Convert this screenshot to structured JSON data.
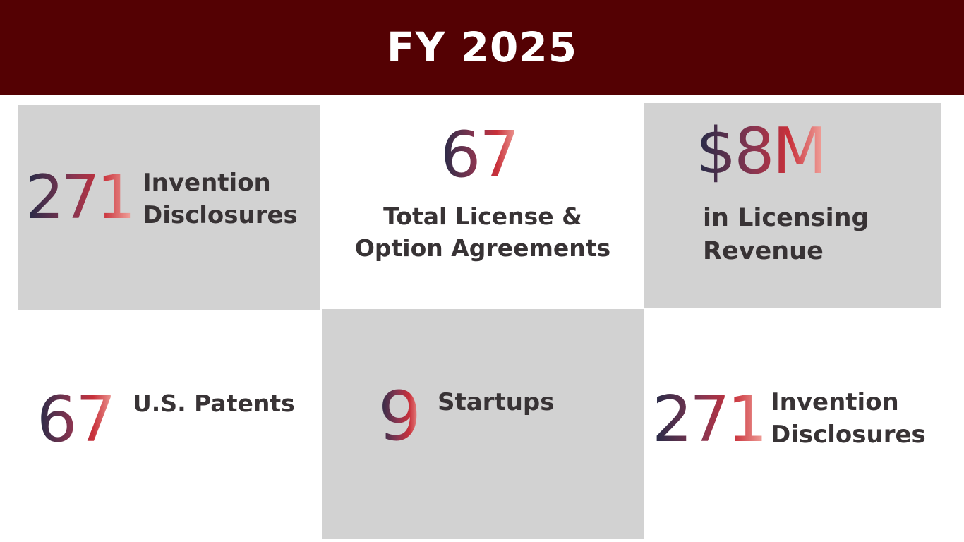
{
  "header": {
    "title": "FY 2025"
  },
  "colors": {
    "header_bg": "#540103",
    "tile_bg": "#d2d2d2",
    "label_text": "#383335"
  },
  "stats": [
    {
      "value": "271",
      "label_line1": "Invention",
      "label_line2": "Disclosures"
    },
    {
      "value": "67",
      "label_line1": "Total License &",
      "label_line2": "Option Agreements"
    },
    {
      "value": "$8M",
      "label_line1": "in Licensing",
      "label_line2": "Revenue"
    },
    {
      "value": "67",
      "label_line1": "U.S. Patents"
    },
    {
      "value": "9",
      "label_line1": "Startups"
    },
    {
      "value": "271",
      "label_line1": "Invention",
      "label_line2": "Disclosures"
    }
  ]
}
